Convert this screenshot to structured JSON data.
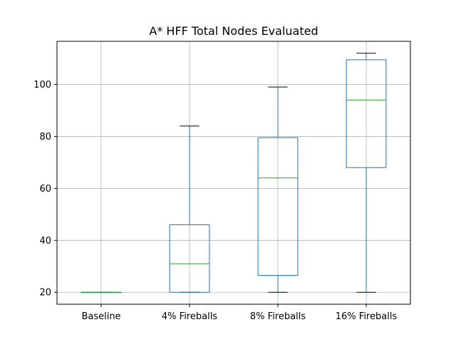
{
  "chart_data": {
    "type": "box",
    "title": "A* HFF Total Nodes Evaluated",
    "xlabel": "",
    "ylabel": "",
    "ylim": [
      15.4,
      116.6
    ],
    "yticks": [
      20,
      40,
      60,
      80,
      100
    ],
    "grid": true,
    "categories": [
      "Baseline",
      "4% Fireballs",
      "8% Fireballs",
      "16% Fireballs"
    ],
    "boxes": [
      {
        "category": "Baseline",
        "whisker_low": 20,
        "q1": 20,
        "median": 20,
        "q3": 20,
        "whisker_high": 20
      },
      {
        "category": "4% Fireballs",
        "whisker_low": 20,
        "q1": 20,
        "median": 31,
        "q3": 46,
        "whisker_high": 84
      },
      {
        "category": "8% Fireballs",
        "whisker_low": 20,
        "q1": 26.5,
        "median": 64,
        "q3": 79.5,
        "whisker_high": 99
      },
      {
        "category": "16% Fireballs",
        "whisker_low": 20,
        "q1": 68,
        "median": 94,
        "q3": 109.5,
        "whisker_high": 112
      }
    ],
    "colors": {
      "box": "#1f77b4",
      "median": "#2ca02c",
      "whisker_cap": "#000000",
      "grid": "#b0b0b0",
      "axes": "#000000"
    }
  }
}
